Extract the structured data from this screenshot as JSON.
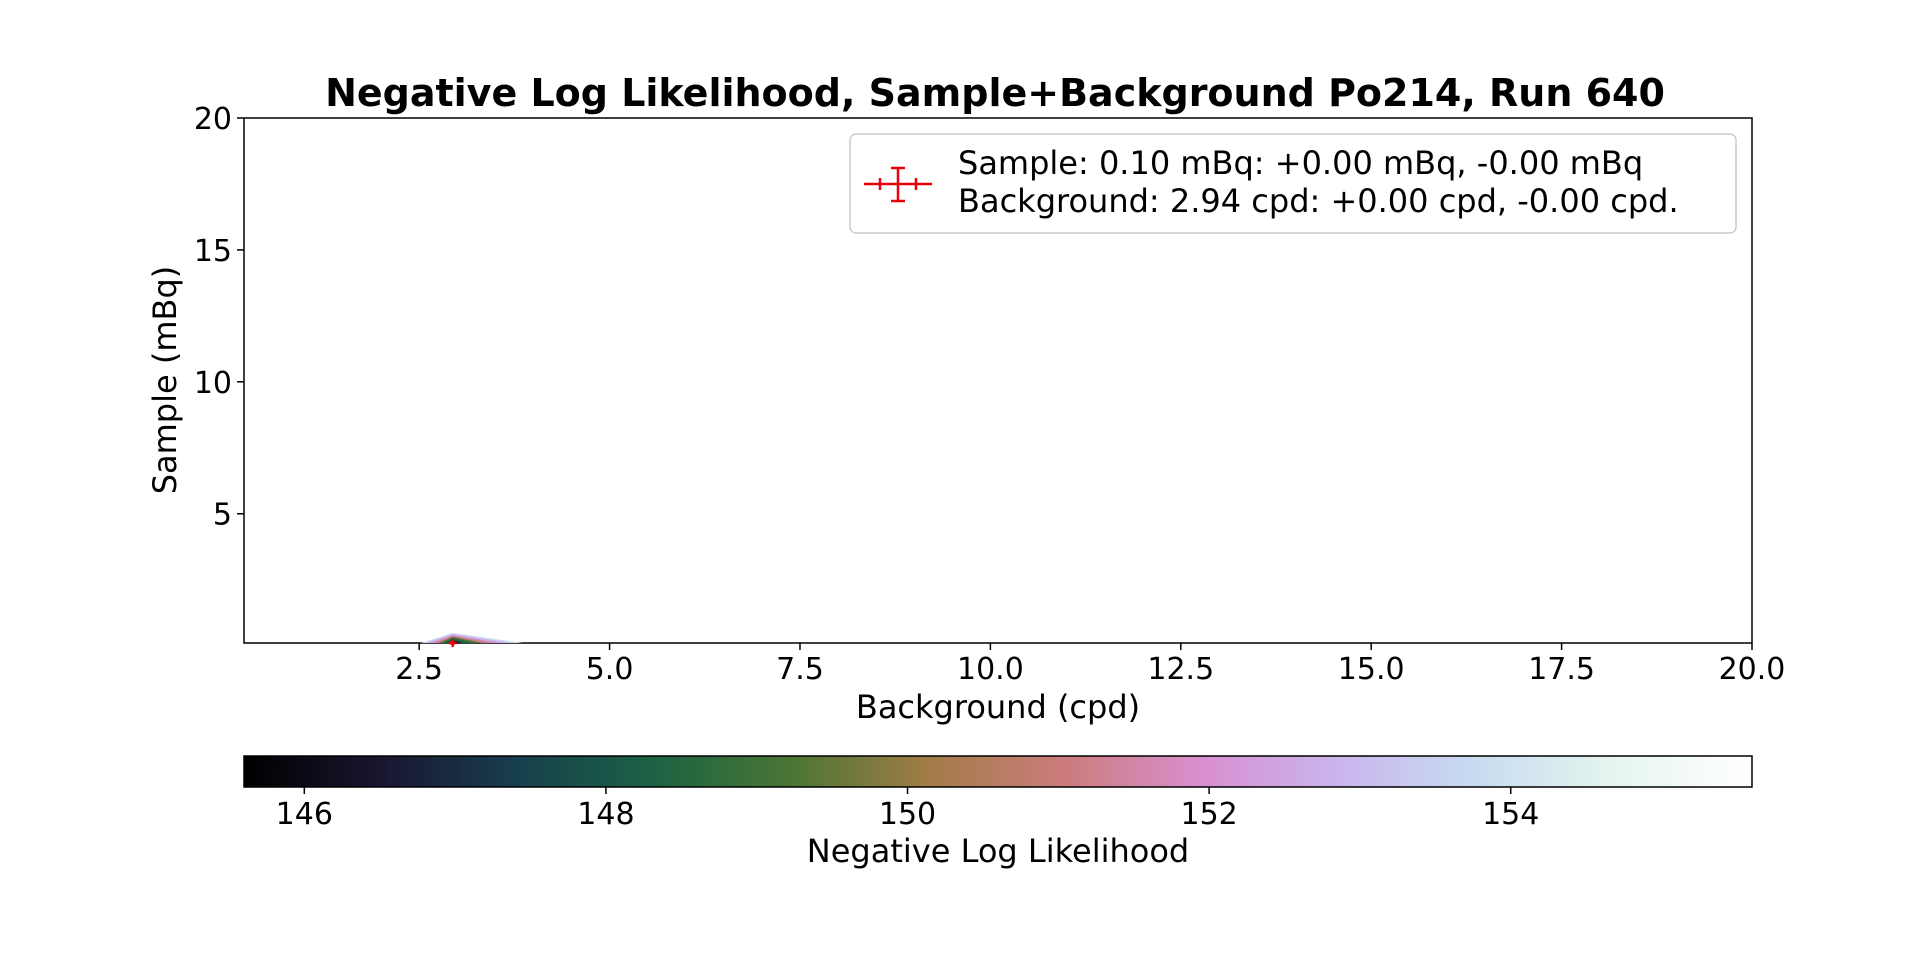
{
  "chart_data": {
    "type": "contour",
    "title": "Negative Log Likelihood, Sample+Background Po214, Run 640",
    "xlabel": "Background (cpd)",
    "ylabel": "Sample (mBq)",
    "xlim": [
      0.2,
      20.0
    ],
    "ylim": [
      0.1,
      20.0
    ],
    "x_ticks": [
      2.5,
      5.0,
      7.5,
      10.0,
      12.5,
      15.0,
      17.5,
      20.0
    ],
    "x_tick_labels": [
      "2.5",
      "5.0",
      "7.5",
      "10.0",
      "12.5",
      "15.0",
      "17.5",
      "20.0"
    ],
    "y_ticks": [
      5,
      10,
      15,
      20
    ],
    "y_tick_labels": [
      "5",
      "10",
      "15",
      "20"
    ],
    "grid": false,
    "best_fit": {
      "background": 2.94,
      "background_err_plus": 0.0,
      "background_err_minus": 0.0,
      "sample": 0.1,
      "sample_err_plus": 0.0,
      "sample_err_minus": 0.0,
      "marker_color": "#e8000b"
    },
    "legend": {
      "placement": "top-right",
      "line1": "Sample: 0.10 mBq: +0.00 mBq, -0.00 mBq",
      "line2": "Background: 2.94 cpd: +0.00 cpd, -0.00 cpd."
    },
    "colorbar": {
      "label": "Negative Log Likelihood",
      "colormap": "cubehelix",
      "range": [
        145.6,
        155.6
      ],
      "ticks": [
        146,
        148,
        150,
        152,
        154
      ],
      "tick_labels": [
        "146",
        "148",
        "150",
        "152",
        "154"
      ],
      "stops": [
        "#000000",
        "#1a1530",
        "#173f4e",
        "#1c6343",
        "#4a7633",
        "#a37c47",
        "#cc7c7d",
        "#d88fd0",
        "#c9b6ee",
        "#c7dcf0",
        "#e6f5ee",
        "#ffffff"
      ]
    }
  }
}
